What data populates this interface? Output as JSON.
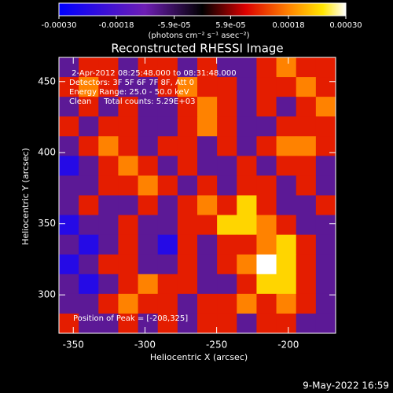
{
  "chart_data": {
    "type": "heatmap",
    "title": "Reconstructed RHESSI Image",
    "xlabel": "Heliocentric X (arcsec)",
    "ylabel": "Heliocentric Y (arcsec)",
    "annotations": [
      " 2-Apr-2012 08:25:48.000 to 08:31:48.000",
      "Detectors: 3F 5F 6F 7F 8F, Att 0",
      "Energy Range: 25.0 - 50.0 keV",
      "Clean     Total counts: 5.29E+03",
      "Position of Peak = [-208,325]"
    ],
    "footer": "9-May-2022 16:59",
    "xlim": [
      -360,
      -167
    ],
    "ylim": [
      273,
      467
    ],
    "xticks": [
      -350,
      -300,
      -250,
      -200
    ],
    "yticks": [
      300,
      350,
      400,
      450
    ],
    "colorbar": {
      "lim": [
        -0.0003,
        0.0003
      ],
      "ticks": [
        {
          "value": -0.0003,
          "label": "-0.00030"
        },
        {
          "value": -0.00018,
          "label": "-0.00018"
        },
        {
          "value": -5.9e-05,
          "label": "-5.9e-05"
        },
        {
          "value": 5.9e-05,
          "label": "5.9e-05"
        },
        {
          "value": 0.00018,
          "label": "0.00018"
        },
        {
          "value": 0.0003,
          "label": "0.00030"
        }
      ],
      "label": "(photons cm⁻² s⁻¹ asec⁻²)"
    },
    "colorscale": [
      [
        0,
        "#0000ff"
      ],
      [
        0.3,
        "#6e1eb4"
      ],
      [
        0.5,
        "#000000"
      ],
      [
        0.65,
        "#dc0000"
      ],
      [
        0.8,
        "#ff8200"
      ],
      [
        0.92,
        "#ffe600"
      ],
      [
        1,
        "#ffffff"
      ]
    ],
    "values": [
      [
        -0.0001,
        0.00011,
        0.00011,
        -0.0001,
        0.00011,
        0.00011,
        -0.0001,
        0.00011,
        -0.0001,
        -0.0001,
        0.00011,
        0.00018,
        0.00011,
        0.00011
      ],
      [
        0.00011,
        0.00018,
        0.00011,
        -0.0001,
        -0.0001,
        0.00011,
        0.00018,
        0.00011,
        0.00011,
        -0.0001,
        0.00011,
        0.00011,
        0.00018,
        0.00011
      ],
      [
        -0.0001,
        0.00011,
        -0.0001,
        0.00011,
        -0.0001,
        -0.0001,
        0.00011,
        0.00018,
        0.00011,
        -0.0001,
        0.00011,
        -0.0001,
        0.00011,
        0.00018
      ],
      [
        0.00011,
        -0.0001,
        0.00011,
        0.00011,
        -0.0001,
        -0.0001,
        0.00011,
        0.00018,
        0.00011,
        -0.0001,
        -0.0001,
        0.00011,
        0.00011,
        0.00011
      ],
      [
        -0.0001,
        0.00011,
        0.00018,
        0.00011,
        -0.0001,
        0.00011,
        0.00011,
        -0.0001,
        0.00011,
        -0.0001,
        0.00011,
        0.00018,
        0.00018,
        0.00011
      ],
      [
        -0.00024,
        -0.0001,
        0.00011,
        0.00018,
        0.00011,
        -0.0001,
        0.00011,
        -0.0001,
        -0.0001,
        0.00011,
        -0.0001,
        0.00011,
        0.00011,
        -0.0001
      ],
      [
        -0.0001,
        -0.0001,
        0.00011,
        0.00011,
        0.00018,
        0.00011,
        -0.0001,
        0.00011,
        -0.0001,
        0.00011,
        0.00011,
        -0.0001,
        0.00011,
        -0.0001
      ],
      [
        -0.0001,
        0.00011,
        -0.0001,
        -0.0001,
        0.00011,
        -0.0001,
        0.00011,
        0.00018,
        0.00011,
        0.00024,
        0.00011,
        -0.0001,
        -0.0001,
        0.00011
      ],
      [
        -0.00024,
        -0.0001,
        -0.0001,
        0.00011,
        -0.0001,
        -0.0001,
        0.00011,
        0.00011,
        0.00024,
        0.00024,
        0.00018,
        0.00011,
        -0.0001,
        -0.0001
      ],
      [
        -0.0001,
        -0.00024,
        -0.0001,
        0.00011,
        -0.0001,
        -0.00024,
        0.00011,
        -0.0001,
        0.00011,
        0.00011,
        0.00018,
        0.00024,
        0.00011,
        -0.0001
      ],
      [
        -0.00024,
        -0.0001,
        0.00011,
        0.00011,
        -0.0001,
        -0.0001,
        0.00011,
        -0.0001,
        0.00011,
        0.00018,
        0.0003,
        0.00024,
        0.00011,
        -0.0001
      ],
      [
        -0.0001,
        -0.00024,
        -0.0001,
        0.00011,
        0.00018,
        0.00011,
        0.00011,
        -0.0001,
        -0.0001,
        0.00011,
        0.00024,
        0.00024,
        0.00011,
        -0.0001
      ],
      [
        -0.0001,
        -0.0001,
        0.00011,
        0.00018,
        0.00011,
        0.00011,
        -0.0001,
        0.00011,
        0.00011,
        0.00018,
        0.00011,
        0.00018,
        0.00011,
        -0.0001
      ],
      [
        0.00011,
        -0.0001,
        -0.0001,
        0.00011,
        -0.0001,
        0.00011,
        -0.0001,
        0.00011,
        0.00011,
        -0.0001,
        0.00011,
        0.00011,
        -0.0001,
        -0.0001
      ]
    ]
  }
}
